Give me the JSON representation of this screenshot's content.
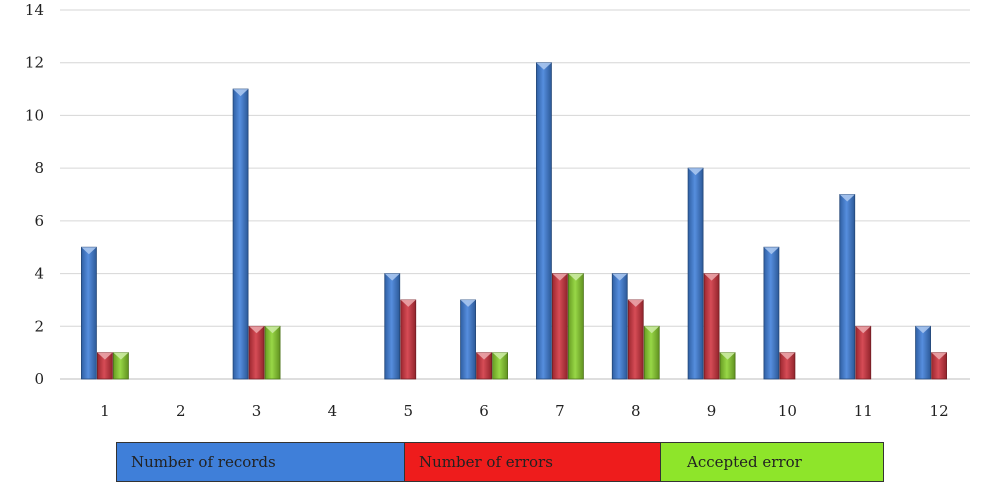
{
  "chart_data": {
    "type": "bar",
    "categories": [
      "1",
      "2",
      "3",
      "4",
      "5",
      "6",
      "7",
      "8",
      "9",
      "10",
      "11",
      "12"
    ],
    "series": [
      {
        "name": "Number of records",
        "color": "#3f7fd9",
        "values": [
          5,
          0,
          11,
          0,
          4,
          3,
          12,
          4,
          8,
          5,
          7,
          2
        ]
      },
      {
        "name": "Number of errors",
        "color": "#d0343f",
        "values": [
          1,
          0,
          2,
          0,
          3,
          1,
          4,
          3,
          4,
          1,
          2,
          1
        ]
      },
      {
        "name": "Accepted error",
        "color": "#8ad12e",
        "values": [
          1,
          0,
          2,
          0,
          0,
          1,
          4,
          2,
          1,
          0,
          0,
          0
        ]
      }
    ],
    "yticks": [
      "0",
      "2",
      "4",
      "6",
      "8",
      "10",
      "12",
      "14"
    ],
    "ylim": [
      0,
      14
    ],
    "grid": true,
    "legend_position": "bottom",
    "title": "",
    "xlabel": "",
    "ylabel": ""
  },
  "legend": {
    "records_label": "Number of records",
    "records_color": "#3f7fd9",
    "errors_label": "Number of errors",
    "errors_color": "#ee1c1c",
    "accepted_label": "Accepted error",
    "accepted_color": "#8ee52a"
  }
}
